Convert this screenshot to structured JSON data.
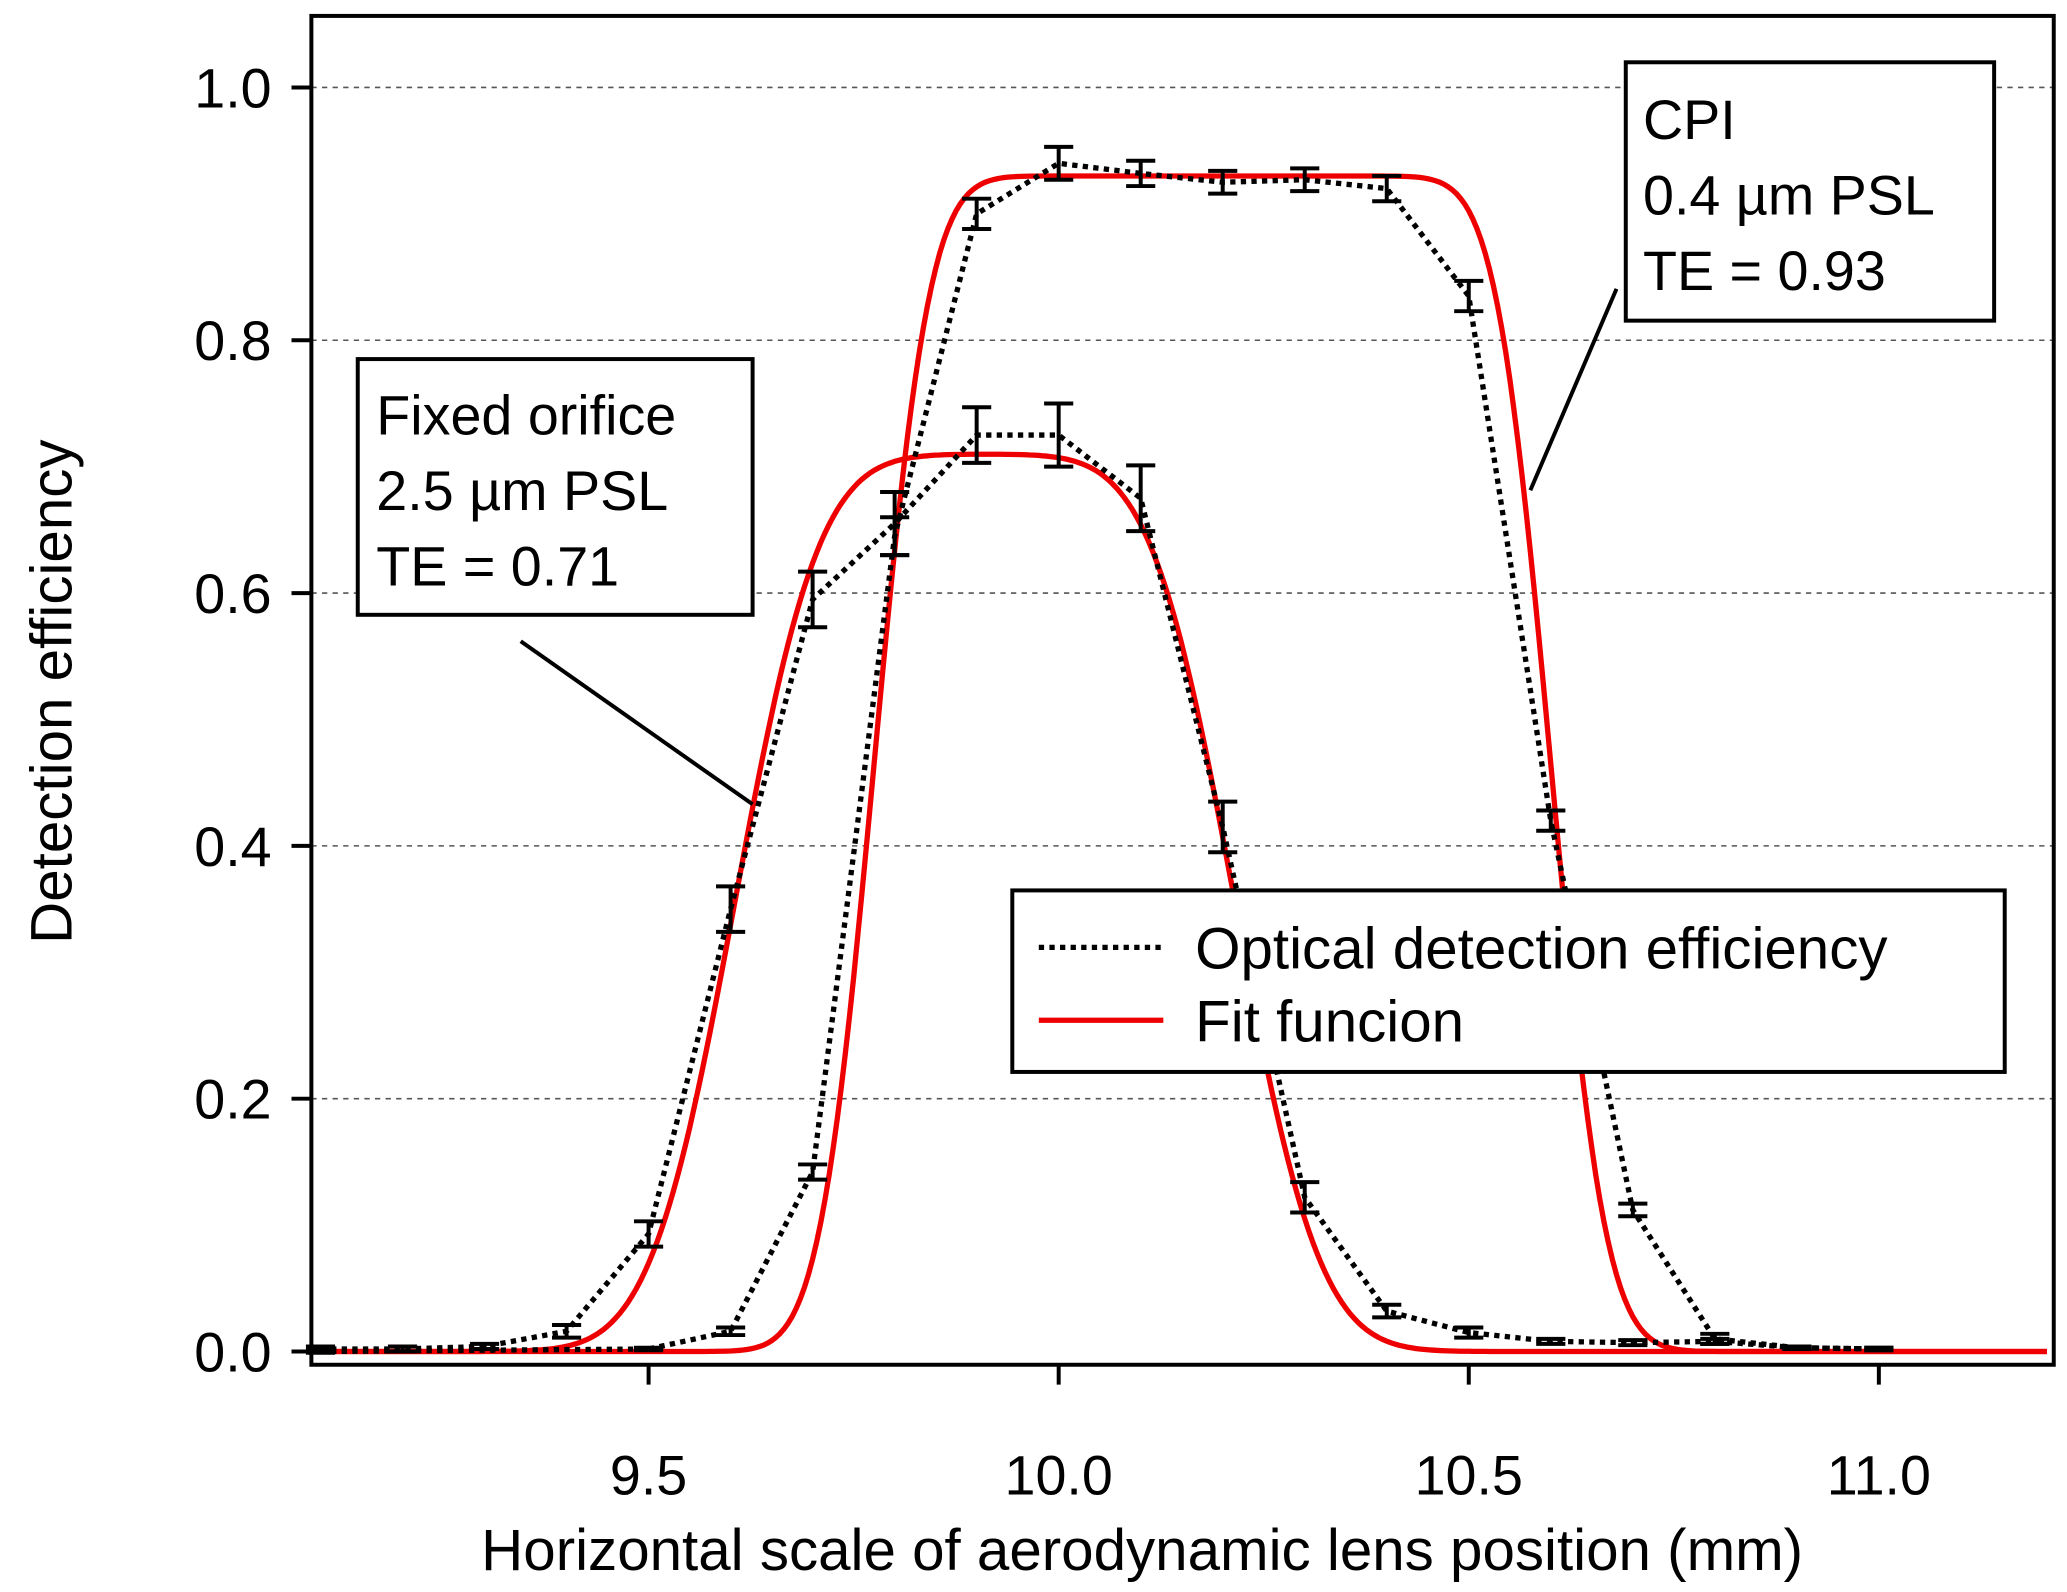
{
  "chart_data": {
    "type": "line",
    "xlabel": "Horizontal scale of aerodynamic lens position (mm)",
    "ylabel": "Detection efficiency",
    "xlim": [
      9.09,
      11.21
    ],
    "ylim": [
      0.0,
      1.07
    ],
    "xticks": [
      9.5,
      10.0,
      10.5,
      11.0
    ],
    "xtick_labels": [
      "9.5",
      "10.0",
      "10.5",
      "11.0"
    ],
    "yticks": [
      0.0,
      0.2,
      0.4,
      0.6,
      0.8,
      1.0
    ],
    "ytick_labels": [
      "0.0",
      "0.2",
      "0.4",
      "0.6",
      "0.8",
      "1.0"
    ],
    "grid": "horizontal dashed",
    "legend": {
      "placement": "lower-right",
      "entries": [
        "Optical detection efficiency",
        "Fit funcion"
      ]
    },
    "annotations": [
      {
        "lines": [
          "Fixed orifice",
          "2.5 µm PSL",
          "TE = 0.71"
        ]
      },
      {
        "lines": [
          "CPI",
          "0.4 µm PSL",
          "TE = 0.93"
        ]
      }
    ],
    "series": [
      {
        "name": "Fixed orifice 2.5 µm PSL - Optical detection efficiency",
        "style": "dotted",
        "color": "#000000",
        "x": [
          9.1,
          9.2,
          9.3,
          9.4,
          9.5,
          9.6,
          9.7,
          9.8,
          9.9,
          10.0,
          10.1,
          10.2,
          10.3,
          10.4,
          10.5,
          10.6,
          10.7,
          10.8,
          10.9,
          11.0
        ],
        "y": [
          0.002,
          0.002,
          0.004,
          0.016,
          0.093,
          0.35,
          0.595,
          0.655,
          0.725,
          0.725,
          0.675,
          0.415,
          0.122,
          0.032,
          0.015,
          0.008,
          0.007,
          0.008,
          0.003,
          0.002
        ],
        "err": [
          0.002,
          0.002,
          0.002,
          0.005,
          0.01,
          0.018,
          0.022,
          0.025,
          0.022,
          0.025,
          0.026,
          0.02,
          0.012,
          0.005,
          0.004,
          0.002,
          0.002,
          0.002,
          0.001,
          0.001
        ]
      },
      {
        "name": "CPI 0.4 µm PSL - Optical detection efficiency",
        "style": "dotted",
        "color": "#000000",
        "x": [
          9.1,
          9.5,
          9.6,
          9.7,
          9.8,
          9.9,
          10.0,
          10.1,
          10.2,
          10.3,
          10.4,
          10.5,
          10.6,
          10.7,
          10.8,
          10.9,
          11.0
        ],
        "y": [
          0.0,
          0.002,
          0.016,
          0.142,
          0.645,
          0.9,
          0.94,
          0.932,
          0.925,
          0.927,
          0.92,
          0.835,
          0.42,
          0.112,
          0.01,
          0.003,
          0.002
        ],
        "err": [
          0.001,
          0.001,
          0.003,
          0.006,
          0.015,
          0.012,
          0.013,
          0.01,
          0.009,
          0.009,
          0.01,
          0.012,
          0.008,
          0.005,
          0.004,
          0.001,
          0.001
        ]
      },
      {
        "name": "Fixed orifice fit",
        "style": "solid",
        "color": "#ee0000",
        "te": 0.71,
        "rise_mid": 9.605,
        "fall_mid": 10.215,
        "rise_width": 0.115,
        "fall_width": 0.115
      },
      {
        "name": "CPI fit",
        "style": "solid",
        "color": "#ee0000",
        "te": 0.93,
        "rise_mid": 9.775,
        "fall_mid": 10.6,
        "rise_width": 0.075,
        "fall_width": 0.075
      }
    ]
  }
}
